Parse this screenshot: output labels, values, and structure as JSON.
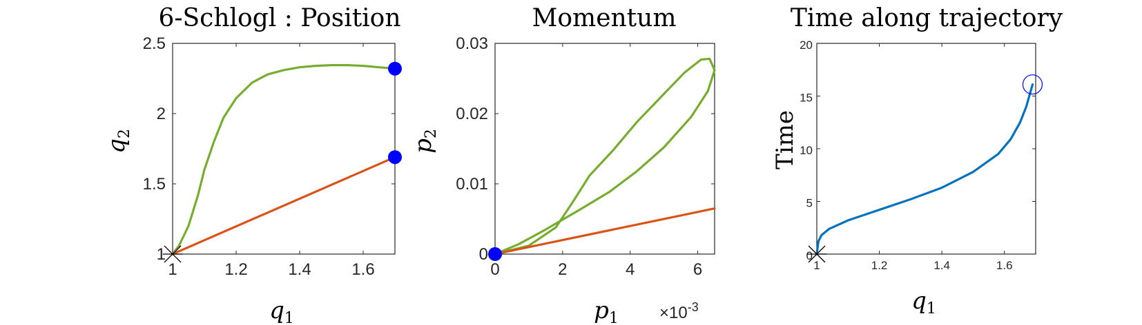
{
  "chart_data": [
    {
      "type": "line",
      "title": "6-Schlogl : Position",
      "xlabel": "q",
      "xlabel_sub": "1",
      "ylabel": "q",
      "ylabel_sub": "2",
      "xlim": [
        1,
        1.7
      ],
      "ylim": [
        1,
        2.5
      ],
      "xticks": [
        1,
        1.2,
        1.4,
        1.6
      ],
      "xtick_labels": [
        "1",
        "1.2",
        "1.4",
        "1.6"
      ],
      "yticks": [
        1,
        1.5,
        2,
        2.5
      ],
      "ytick_labels": [
        "1",
        "1.5",
        "2",
        "2.5"
      ],
      "grid": false,
      "series": [
        {
          "color": "#77AC30",
          "x": [
            1.0,
            1.02,
            1.05,
            1.08,
            1.1,
            1.13,
            1.16,
            1.2,
            1.25,
            1.3,
            1.35,
            1.4,
            1.45,
            1.5,
            1.55,
            1.6,
            1.65,
            1.7
          ],
          "y": [
            1.0,
            1.06,
            1.2,
            1.42,
            1.6,
            1.8,
            1.97,
            2.11,
            2.22,
            2.28,
            2.31,
            2.33,
            2.34,
            2.345,
            2.345,
            2.34,
            2.33,
            2.32
          ]
        },
        {
          "color": "#D95319",
          "x": [
            1.0,
            1.7
          ],
          "y": [
            1.0,
            1.69
          ]
        }
      ],
      "markers": [
        {
          "x": 1.7,
          "y": 2.32,
          "style": "filled-circle",
          "color": "#0000FF"
        },
        {
          "x": 1.7,
          "y": 1.69,
          "style": "filled-circle",
          "color": "#0000FF"
        },
        {
          "x": 1.0,
          "y": 1.0,
          "style": "asterisk",
          "color": "#000000"
        }
      ]
    },
    {
      "type": "line",
      "title": "Momentum",
      "xlabel": "p",
      "xlabel_sub": "1",
      "ylabel": "p",
      "ylabel_sub": "2",
      "x_exponent_label": "×10",
      "x_exponent_power": "-3",
      "xlim": [
        0,
        6.5
      ],
      "ylim": [
        0,
        0.03
      ],
      "xticks": [
        0,
        2,
        4,
        6
      ],
      "xtick_labels": [
        "0",
        "2",
        "4",
        "6"
      ],
      "yticks": [
        0,
        0.01,
        0.02,
        0.03
      ],
      "ytick_labels": [
        "0",
        "0.01",
        "0.02",
        "0.03"
      ],
      "grid": false,
      "series": [
        {
          "color": "#77AC30",
          "x": [
            0,
            1.0,
            1.8,
            2.3,
            2.8,
            3.5,
            4.2,
            5.0,
            5.6,
            6.1,
            6.35,
            6.5,
            6.3,
            5.8,
            5.0,
            4.2,
            3.4,
            2.5,
            1.5,
            0.7,
            0
          ],
          "y": [
            0,
            0.0012,
            0.0038,
            0.0074,
            0.0112,
            0.0148,
            0.0188,
            0.0228,
            0.0258,
            0.0277,
            0.0278,
            0.0262,
            0.0232,
            0.0195,
            0.0152,
            0.0118,
            0.0089,
            0.0063,
            0.0035,
            0.0014,
            0
          ]
        },
        {
          "color": "#D95319",
          "x": [
            0,
            6.5
          ],
          "y": [
            0,
            0.0065
          ]
        }
      ],
      "markers": [
        {
          "x": 0,
          "y": 0,
          "style": "filled-circle",
          "color": "#0000FF"
        }
      ]
    },
    {
      "type": "line",
      "title": "Time along trajectory",
      "xlabel": "q",
      "xlabel_sub": "1",
      "ylabel": "Time",
      "xlim": [
        1,
        1.7
      ],
      "ylim": [
        0,
        20
      ],
      "xticks": [
        1,
        1.2,
        1.4,
        1.6
      ],
      "xtick_labels": [
        "1",
        "1.2",
        "1.4",
        "1.6"
      ],
      "yticks": [
        0,
        5,
        10,
        15,
        20
      ],
      "ytick_labels": [
        "0",
        "5",
        "10",
        "15",
        "20"
      ],
      "grid": false,
      "series": [
        {
          "color": "#0072BD",
          "x": [
            1.0,
            1.005,
            1.015,
            1.04,
            1.1,
            1.2,
            1.3,
            1.4,
            1.5,
            1.58,
            1.62,
            1.65,
            1.67,
            1.69
          ],
          "y": [
            0,
            1.2,
            1.8,
            2.4,
            3.2,
            4.2,
            5.2,
            6.3,
            7.8,
            9.5,
            10.9,
            12.5,
            14.0,
            16.1
          ]
        }
      ],
      "markers": [
        {
          "x": 1.69,
          "y": 16.1,
          "style": "open-circle",
          "color": "#0000FF"
        },
        {
          "x": 1.0,
          "y": 0,
          "style": "asterisk",
          "color": "#000000"
        }
      ]
    }
  ]
}
